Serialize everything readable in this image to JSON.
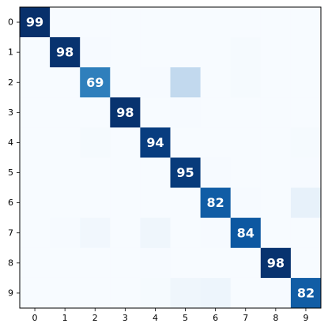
{
  "chart_data": {
    "type": "heatmap",
    "title": "",
    "xlabel": "",
    "ylabel": "",
    "x_ticks": [
      "0",
      "1",
      "2",
      "3",
      "4",
      "5",
      "6",
      "7",
      "8",
      "9"
    ],
    "y_ticks": [
      "0",
      "1",
      "2",
      "3",
      "4",
      "5",
      "6",
      "7",
      "8",
      "9"
    ],
    "colormap": "Blues",
    "color_range": [
      0,
      99
    ],
    "grid": false,
    "matrix": [
      [
        99,
        0,
        0,
        0,
        0,
        0,
        0,
        0,
        0,
        0
      ],
      [
        0,
        98,
        0.5,
        0,
        0,
        0,
        0,
        1,
        0,
        0
      ],
      [
        0,
        0,
        69,
        0,
        0.5,
        26,
        0,
        1,
        0,
        0
      ],
      [
        0,
        0,
        0,
        98,
        0,
        0.5,
        0,
        0,
        0,
        0
      ],
      [
        0,
        0,
        1,
        0,
        94,
        0,
        0,
        0,
        0,
        1
      ],
      [
        0,
        0,
        0,
        0,
        0,
        95,
        0.5,
        0,
        0,
        0.5
      ],
      [
        0,
        0,
        0,
        0,
        0,
        0,
        82,
        0.5,
        0,
        8
      ],
      [
        0,
        0.5,
        3,
        0,
        4,
        0,
        0.5,
        84,
        0,
        0
      ],
      [
        0,
        0,
        0,
        0,
        0.5,
        0,
        0,
        0,
        98,
        0
      ],
      [
        0,
        0,
        0,
        0,
        1,
        4,
        5,
        0,
        0.5,
        82
      ]
    ],
    "cell_labels": [
      {
        "row": 0,
        "col": 0,
        "text": "99"
      },
      {
        "row": 1,
        "col": 1,
        "text": "98"
      },
      {
        "row": 2,
        "col": 2,
        "text": "69"
      },
      {
        "row": 3,
        "col": 3,
        "text": "98"
      },
      {
        "row": 4,
        "col": 4,
        "text": "94"
      },
      {
        "row": 5,
        "col": 5,
        "text": "95"
      },
      {
        "row": 6,
        "col": 6,
        "text": "82"
      },
      {
        "row": 7,
        "col": 7,
        "text": "84"
      },
      {
        "row": 8,
        "col": 8,
        "text": "98"
      },
      {
        "row": 9,
        "col": 9,
        "text": "82"
      }
    ]
  }
}
